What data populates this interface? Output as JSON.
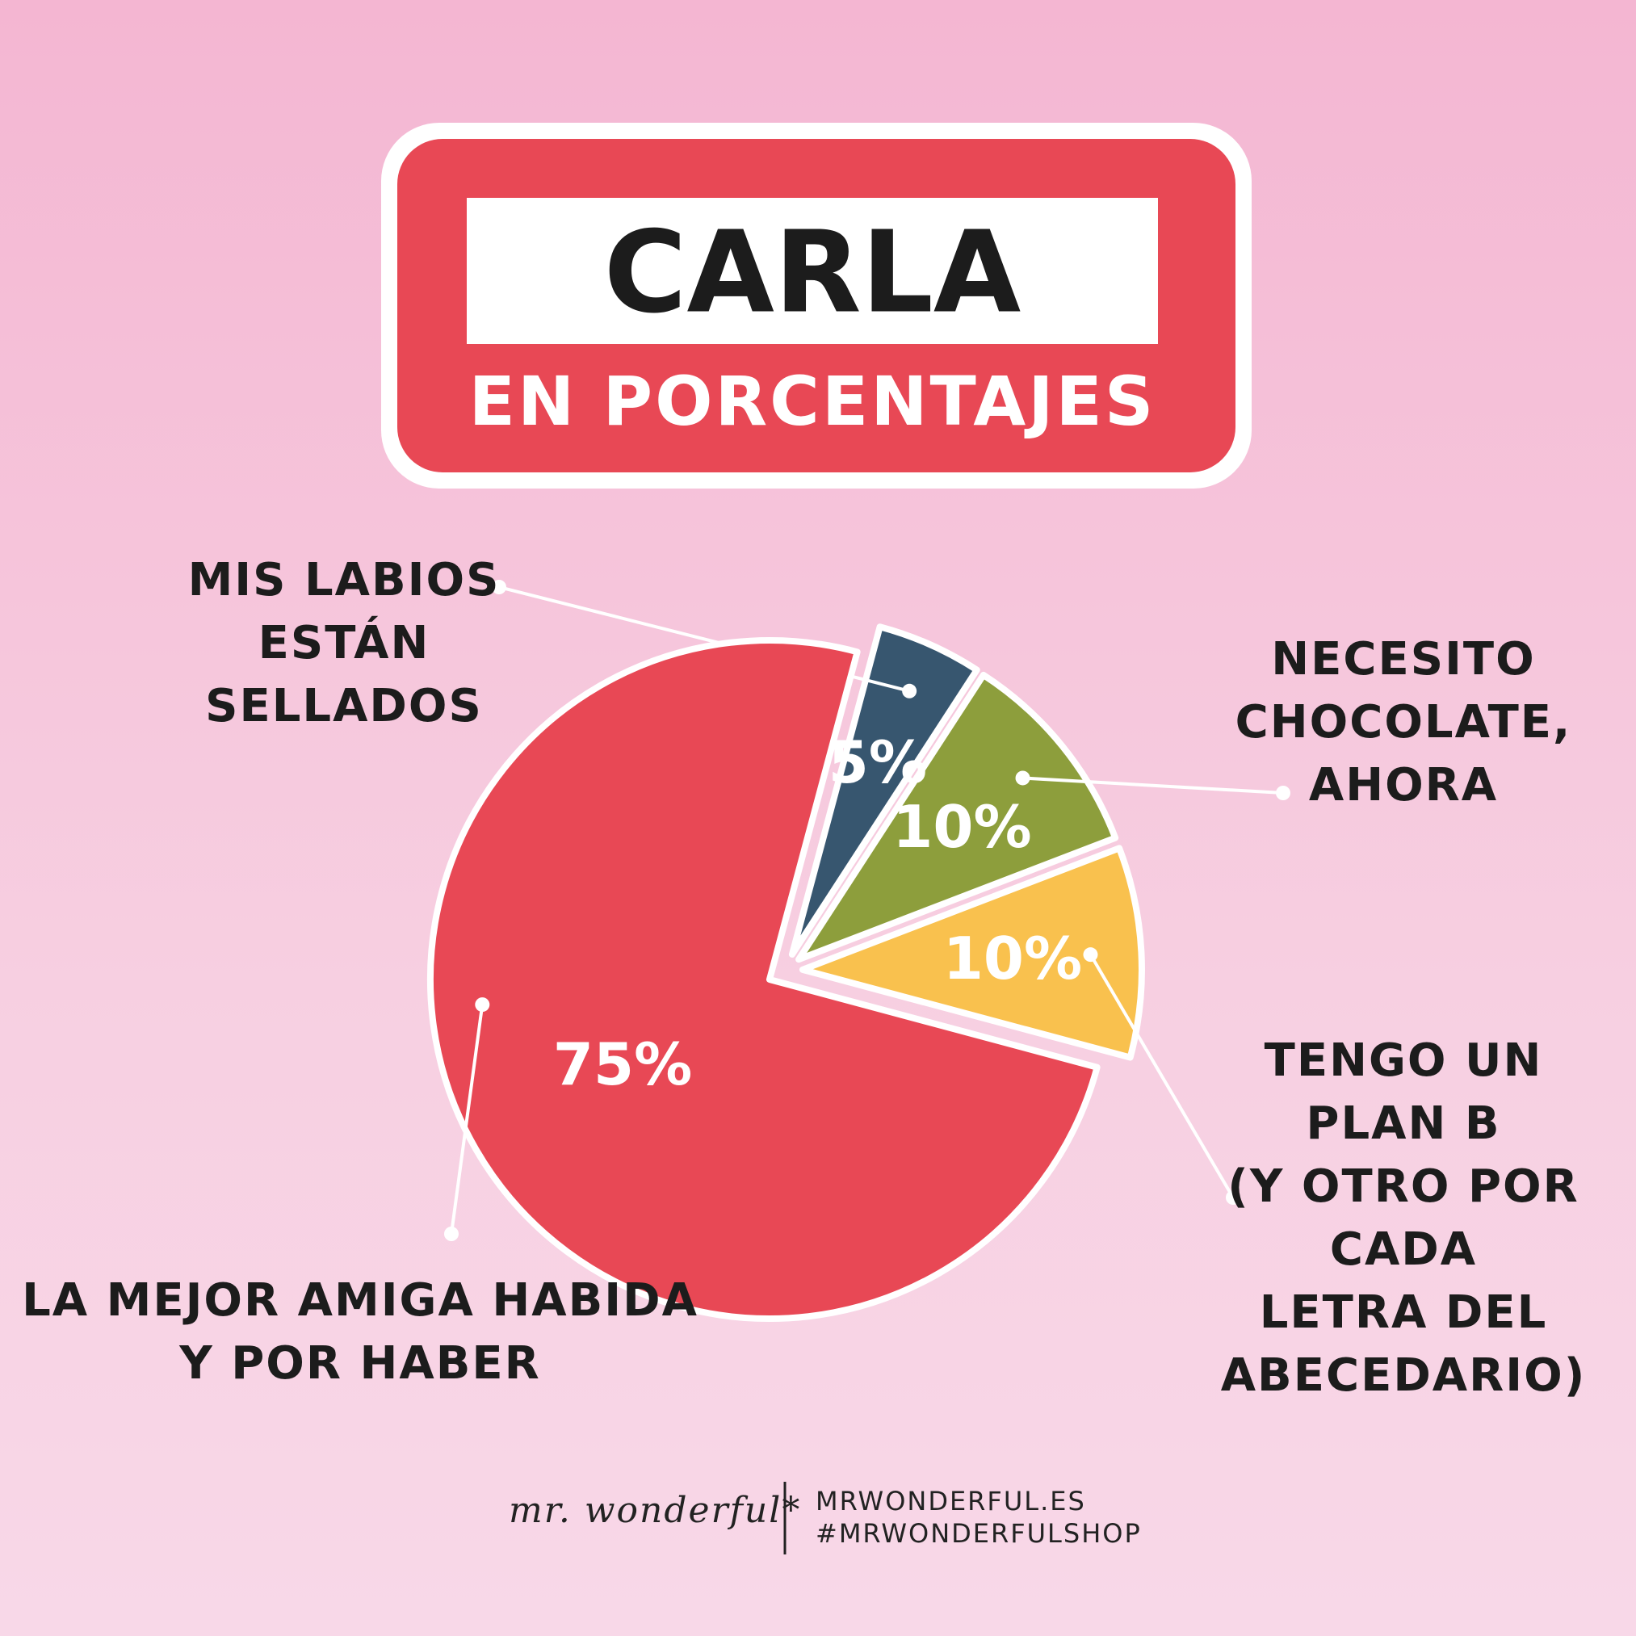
{
  "chart_data": {
    "type": "pie",
    "title": "CARLA",
    "subtitle": "EN PORCENTAJES",
    "categories": [
      "MIS LABIOS\nESTÁN\nSELLADOS",
      "NECESITO\nCHOCOLATE,\nAHORA",
      "TENGO UN PLAN B\n(Y OTRO POR CADA\nLETRA DEL\nABECEDARIO)",
      "LA MEJOR AMIGA HABIDA\nY POR HABER"
    ],
    "values": [
      5,
      10,
      10,
      75
    ],
    "value_labels": [
      "5%",
      "10%",
      "10%",
      "75%"
    ],
    "colors": [
      "#37566f",
      "#8d9e3c",
      "#f9c14e",
      "#e84855"
    ]
  },
  "footer": {
    "logo": "mr. wonderful*",
    "website": "MRWONDERFUL.ES",
    "hashtag": "#MRWONDERFULSHOP"
  }
}
